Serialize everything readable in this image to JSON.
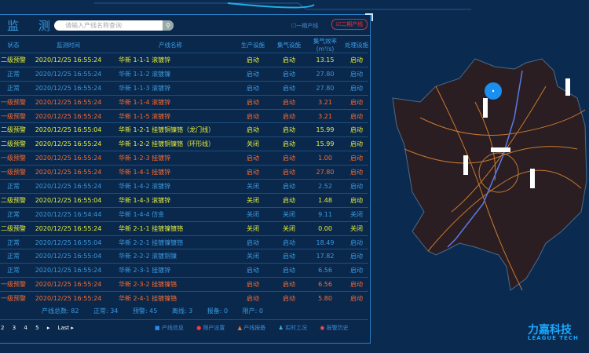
{
  "header": {
    "title": "监 测",
    "search_placeholder": "请输入产线名称查询",
    "filter1": "一期产线",
    "filter2": "二期产线"
  },
  "columns": [
    "状态",
    "监测时间",
    "产线名称",
    "生产设施",
    "集气设施",
    "集气效率(m³/s)",
    "处理设施"
  ],
  "colors": {
    "normal": "#3a9ae0",
    "level2": "#e6ef3a",
    "level1": "#ff6a2a"
  },
  "rows": [
    [
      "二级预警",
      "2020/12/25 16:55:24",
      "华新 1-1-1 滚镀锌",
      "启动",
      "启动",
      "13.15",
      "启动",
      "level2"
    ],
    [
      "正常",
      "2020/12/25 16:55:24",
      "华新 1-1-2 滚镀镍",
      "启动",
      "启动",
      "27.80",
      "启动",
      "normal"
    ],
    [
      "正常",
      "2020/12/25 16:55:24",
      "华新 1-1-3 滚镀锌",
      "启动",
      "启动",
      "27.80",
      "启动",
      "normal"
    ],
    [
      "一级预警",
      "2020/12/25 16:55:24",
      "华新 1-1-4 滚镀锌",
      "启动",
      "启动",
      "3.21",
      "启动",
      "level1"
    ],
    [
      "一级预警",
      "2020/12/25 16:55:24",
      "华新 1-1-5 滚镀锌",
      "启动",
      "启动",
      "3.21",
      "启动",
      "level1"
    ],
    [
      "二级预警",
      "2020/12/25 16:55:04",
      "华新 1-2-1 挂镀铜镍铬（龙门线）",
      "启动",
      "启动",
      "15.99",
      "启动",
      "level2"
    ],
    [
      "二级预警",
      "2020/12/25 16:55:24",
      "华新 1-2-2 挂镀铜镍铬（环形线）",
      "关闭",
      "启动",
      "15.99",
      "启动",
      "level2"
    ],
    [
      "一级预警",
      "2020/12/25 16:55:24",
      "华新 1-2-3 挂镀锌",
      "启动",
      "启动",
      "1.00",
      "启动",
      "level1"
    ],
    [
      "一级预警",
      "2020/12/25 16:55:24",
      "华新 1-4-1 挂镀锌",
      "启动",
      "启动",
      "27.80",
      "启动",
      "level1"
    ],
    [
      "正常",
      "2020/12/25 16:55:24",
      "华新 1-4-2 滚镀锌",
      "关闭",
      "启动",
      "2.52",
      "启动",
      "normal"
    ],
    [
      "二级预警",
      "2020/12/25 16:55:04",
      "华新 1-4-3 滚镀锌",
      "关闭",
      "启动",
      "1.48",
      "启动",
      "level2"
    ],
    [
      "正常",
      "2020/12/25 16:54:44",
      "华新 1-4-4 仿金",
      "关闭",
      "关闭",
      "9.11",
      "关闭",
      "normal"
    ],
    [
      "二级预警",
      "2020/12/25 16:55:24",
      "华新 2-1-1 挂镀镍镀铬",
      "关闭",
      "关闭",
      "0.00",
      "关闭",
      "level2"
    ],
    [
      "正常",
      "2020/12/25 16:55:04",
      "华新 2-2-1 挂镀镍镀铬",
      "启动",
      "启动",
      "18.49",
      "启动",
      "normal"
    ],
    [
      "正常",
      "2020/12/25 16:55:04",
      "华新 2-2-2 滚镀铜镍",
      "关闭",
      "启动",
      "17.82",
      "启动",
      "normal"
    ],
    [
      "正常",
      "2020/12/25 16:55:24",
      "华新 2-3-1 挂镀锌",
      "启动",
      "启动",
      "6.56",
      "启动",
      "normal"
    ],
    [
      "一级预警",
      "2020/12/25 16:55:24",
      "华新 2-3-2 挂镀镍铬",
      "启动",
      "启动",
      "6.56",
      "启动",
      "level1"
    ],
    [
      "一级预警",
      "2020/12/25 16:55:24",
      "华新 2-4-1 挂镀镍铬",
      "启动",
      "启动",
      "5.80",
      "启动",
      "level1"
    ]
  ],
  "summary": {
    "total": "产线总数: 82",
    "normal": "正常: 34",
    "warning": "预警: 45",
    "offline": "离线: 3",
    "standby": "报备: 0",
    "stopped": "限产: 0"
  },
  "pagination": {
    "pages": [
      "2",
      "3",
      "4",
      "5"
    ],
    "next": "▸",
    "last": "Last ▸"
  },
  "tools": [
    "产线信息",
    "限产设置",
    "产线报备",
    "实时工况",
    "报警历史"
  ],
  "logo": {
    "name": "力嘉科技",
    "en": "LEAGUE TECH"
  }
}
